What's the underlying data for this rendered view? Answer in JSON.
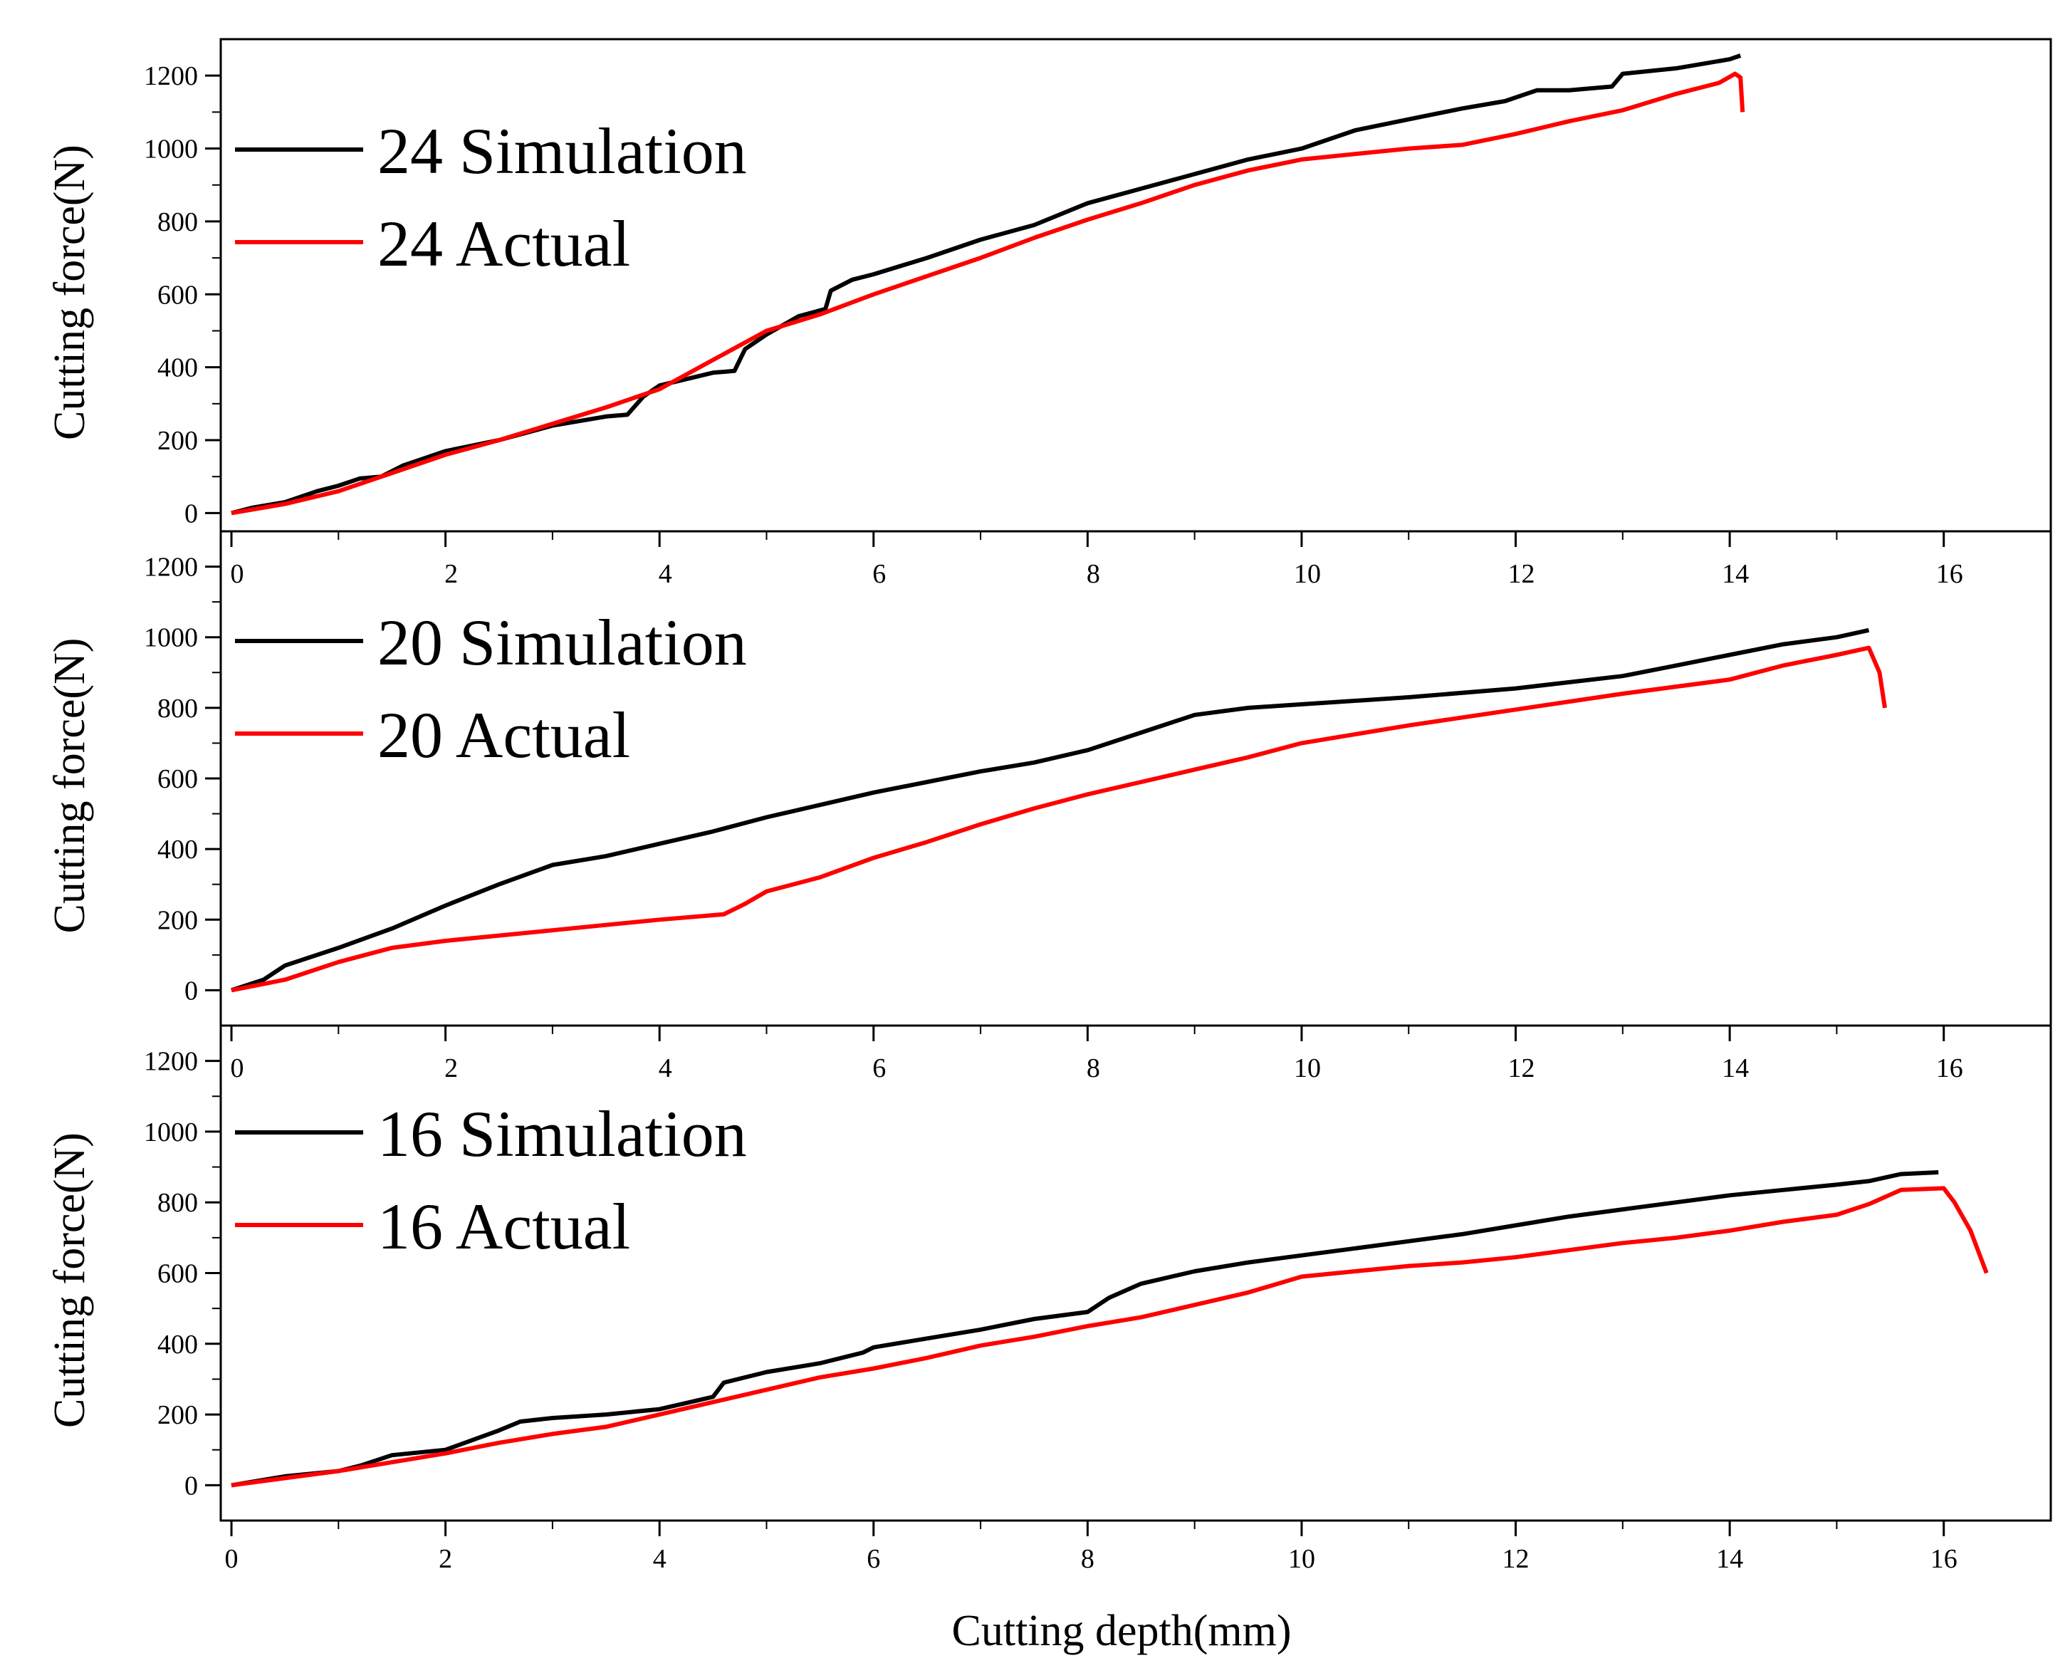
{
  "chart_data": [
    {
      "type": "line",
      "xlabel": "",
      "ylabel": "Cutting force(N)",
      "xlim": [
        -0.1,
        17
      ],
      "ylim": [
        -50,
        1300
      ],
      "xticks": [
        0,
        2,
        4,
        6,
        8,
        10,
        12,
        14,
        16
      ],
      "yticks": [
        0,
        200,
        400,
        600,
        800,
        1000,
        1200
      ],
      "x_tick_labels_shown": false,
      "grid": false,
      "legend_position": "top-left",
      "series": [
        {
          "name": "24 Simulation",
          "color": "#000000",
          "x": [
            0,
            0.2,
            0.5,
            0.8,
            1.0,
            1.2,
            1.4,
            1.6,
            2.0,
            2.5,
            3.0,
            3.5,
            3.7,
            3.85,
            4.0,
            4.5,
            4.7,
            4.8,
            5.0,
            5.3,
            5.55,
            5.6,
            5.8,
            6.0,
            6.5,
            7.0,
            7.5,
            8.0,
            8.5,
            9.0,
            9.5,
            10.0,
            10.5,
            11.0,
            11.5,
            11.9,
            12.2,
            12.5,
            12.9,
            13.0,
            13.5,
            14.0,
            14.1
          ],
          "y": [
            0,
            15,
            30,
            60,
            75,
            95,
            100,
            130,
            170,
            200,
            240,
            265,
            270,
            320,
            350,
            385,
            390,
            450,
            490,
            540,
            560,
            610,
            640,
            655,
            700,
            750,
            790,
            850,
            890,
            930,
            970,
            1000,
            1050,
            1080,
            1110,
            1130,
            1160,
            1160,
            1170,
            1205,
            1220,
            1245,
            1255
          ]
        },
        {
          "name": "24 Actual",
          "color": "#ff0000",
          "x": [
            0,
            0.5,
            1.0,
            1.5,
            2.0,
            2.5,
            3.0,
            3.5,
            4.0,
            4.5,
            5.0,
            5.5,
            6.0,
            6.5,
            7.0,
            7.5,
            8.0,
            8.5,
            9.0,
            9.5,
            10.0,
            10.5,
            11.0,
            11.5,
            12.0,
            12.5,
            13.0,
            13.5,
            13.9,
            14.05,
            14.1,
            14.12
          ],
          "y": [
            0,
            25,
            60,
            110,
            160,
            200,
            245,
            290,
            340,
            420,
            500,
            545,
            600,
            650,
            700,
            755,
            805,
            850,
            900,
            940,
            970,
            985,
            1000,
            1010,
            1040,
            1075,
            1105,
            1150,
            1180,
            1205,
            1195,
            1100
          ]
        }
      ]
    },
    {
      "type": "line",
      "xlabel": "",
      "ylabel": "Cutting force(N)",
      "xlim": [
        -0.1,
        17
      ],
      "ylim": [
        -100,
        1300
      ],
      "xticks": [
        0,
        2,
        4,
        6,
        8,
        10,
        12,
        14,
        16
      ],
      "x_tick_labels": [
        "0",
        "2",
        "4",
        "6",
        "8",
        "10",
        "12",
        "14",
        "16"
      ],
      "yticks": [
        0,
        200,
        400,
        600,
        800,
        1000,
        1200
      ],
      "grid": false,
      "legend_position": "top-left",
      "series": [
        {
          "name": "20 Simulation",
          "color": "#000000",
          "x": [
            0,
            0.3,
            0.5,
            1.0,
            1.5,
            2.0,
            2.5,
            3.0,
            3.5,
            4.0,
            4.5,
            5.0,
            5.5,
            6.0,
            6.5,
            7.0,
            7.5,
            8.0,
            8.5,
            9.0,
            9.5,
            10.0,
            11.0,
            12.0,
            13.0,
            13.5,
            14.0,
            14.5,
            15.0,
            15.3
          ],
          "y": [
            0,
            30,
            70,
            120,
            175,
            240,
            300,
            355,
            380,
            415,
            450,
            490,
            525,
            560,
            590,
            620,
            645,
            680,
            730,
            780,
            800,
            810,
            830,
            855,
            890,
            920,
            950,
            980,
            1000,
            1020
          ]
        },
        {
          "name": "20 Actual",
          "color": "#ff0000",
          "x": [
            0,
            0.5,
            1.0,
            1.5,
            2.0,
            2.5,
            3.0,
            3.5,
            4.0,
            4.6,
            4.8,
            5.0,
            5.5,
            6.0,
            6.5,
            7.0,
            7.5,
            8.0,
            8.5,
            9.0,
            9.5,
            10.0,
            11.0,
            12.0,
            13.0,
            14.0,
            14.5,
            15.0,
            15.3,
            15.4,
            15.45
          ],
          "y": [
            0,
            30,
            80,
            120,
            140,
            155,
            170,
            185,
            200,
            215,
            245,
            280,
            320,
            375,
            420,
            470,
            515,
            555,
            590,
            625,
            660,
            700,
            750,
            795,
            840,
            880,
            920,
            950,
            970,
            900,
            800
          ]
        }
      ]
    },
    {
      "type": "line",
      "xlabel": "Cutting depth(mm)",
      "ylabel": "Cutting force(N)",
      "xlim": [
        -0.1,
        17
      ],
      "ylim": [
        -100,
        1300
      ],
      "xticks": [
        0,
        2,
        4,
        6,
        8,
        10,
        12,
        14,
        16
      ],
      "x_tick_labels": [
        "0",
        "2",
        "4",
        "6",
        "8",
        "10",
        "12",
        "14",
        "16"
      ],
      "yticks": [
        0,
        200,
        400,
        600,
        800,
        1000,
        1200
      ],
      "grid": false,
      "legend_position": "top-left",
      "series": [
        {
          "name": "16 Simulation",
          "color": "#000000",
          "x": [
            0,
            0.5,
            1.0,
            1.2,
            1.5,
            2.0,
            2.5,
            2.7,
            3.0,
            3.5,
            4.0,
            4.5,
            4.6,
            5.0,
            5.5,
            5.9,
            6.0,
            6.5,
            7.0,
            7.5,
            8.0,
            8.2,
            8.5,
            9.0,
            9.5,
            10.0,
            10.5,
            11.0,
            11.5,
            12.0,
            12.5,
            13.0,
            13.5,
            14.0,
            14.5,
            15.0,
            15.3,
            15.6,
            15.95
          ],
          "y": [
            0,
            25,
            40,
            55,
            85,
            100,
            155,
            180,
            190,
            200,
            215,
            250,
            290,
            320,
            345,
            375,
            390,
            415,
            440,
            470,
            490,
            530,
            570,
            605,
            630,
            650,
            670,
            690,
            710,
            735,
            760,
            780,
            800,
            820,
            835,
            850,
            860,
            880,
            885
          ]
        },
        {
          "name": "16 Actual",
          "color": "#ff0000",
          "x": [
            0,
            0.5,
            1.0,
            1.5,
            2.0,
            2.5,
            3.0,
            3.5,
            4.0,
            4.5,
            5.0,
            5.5,
            6.0,
            6.5,
            7.0,
            7.5,
            8.0,
            8.5,
            9.0,
            9.5,
            10.0,
            10.5,
            11.0,
            11.5,
            12.0,
            12.5,
            13.0,
            13.5,
            14.0,
            14.5,
            15.0,
            15.3,
            15.6,
            16.0,
            16.1,
            16.25,
            16.4
          ],
          "y": [
            0,
            20,
            40,
            65,
            90,
            120,
            145,
            165,
            200,
            235,
            270,
            305,
            330,
            360,
            395,
            420,
            450,
            475,
            510,
            545,
            590,
            605,
            620,
            630,
            645,
            665,
            685,
            700,
            720,
            745,
            765,
            795,
            835,
            840,
            800,
            720,
            600
          ]
        }
      ]
    }
  ]
}
